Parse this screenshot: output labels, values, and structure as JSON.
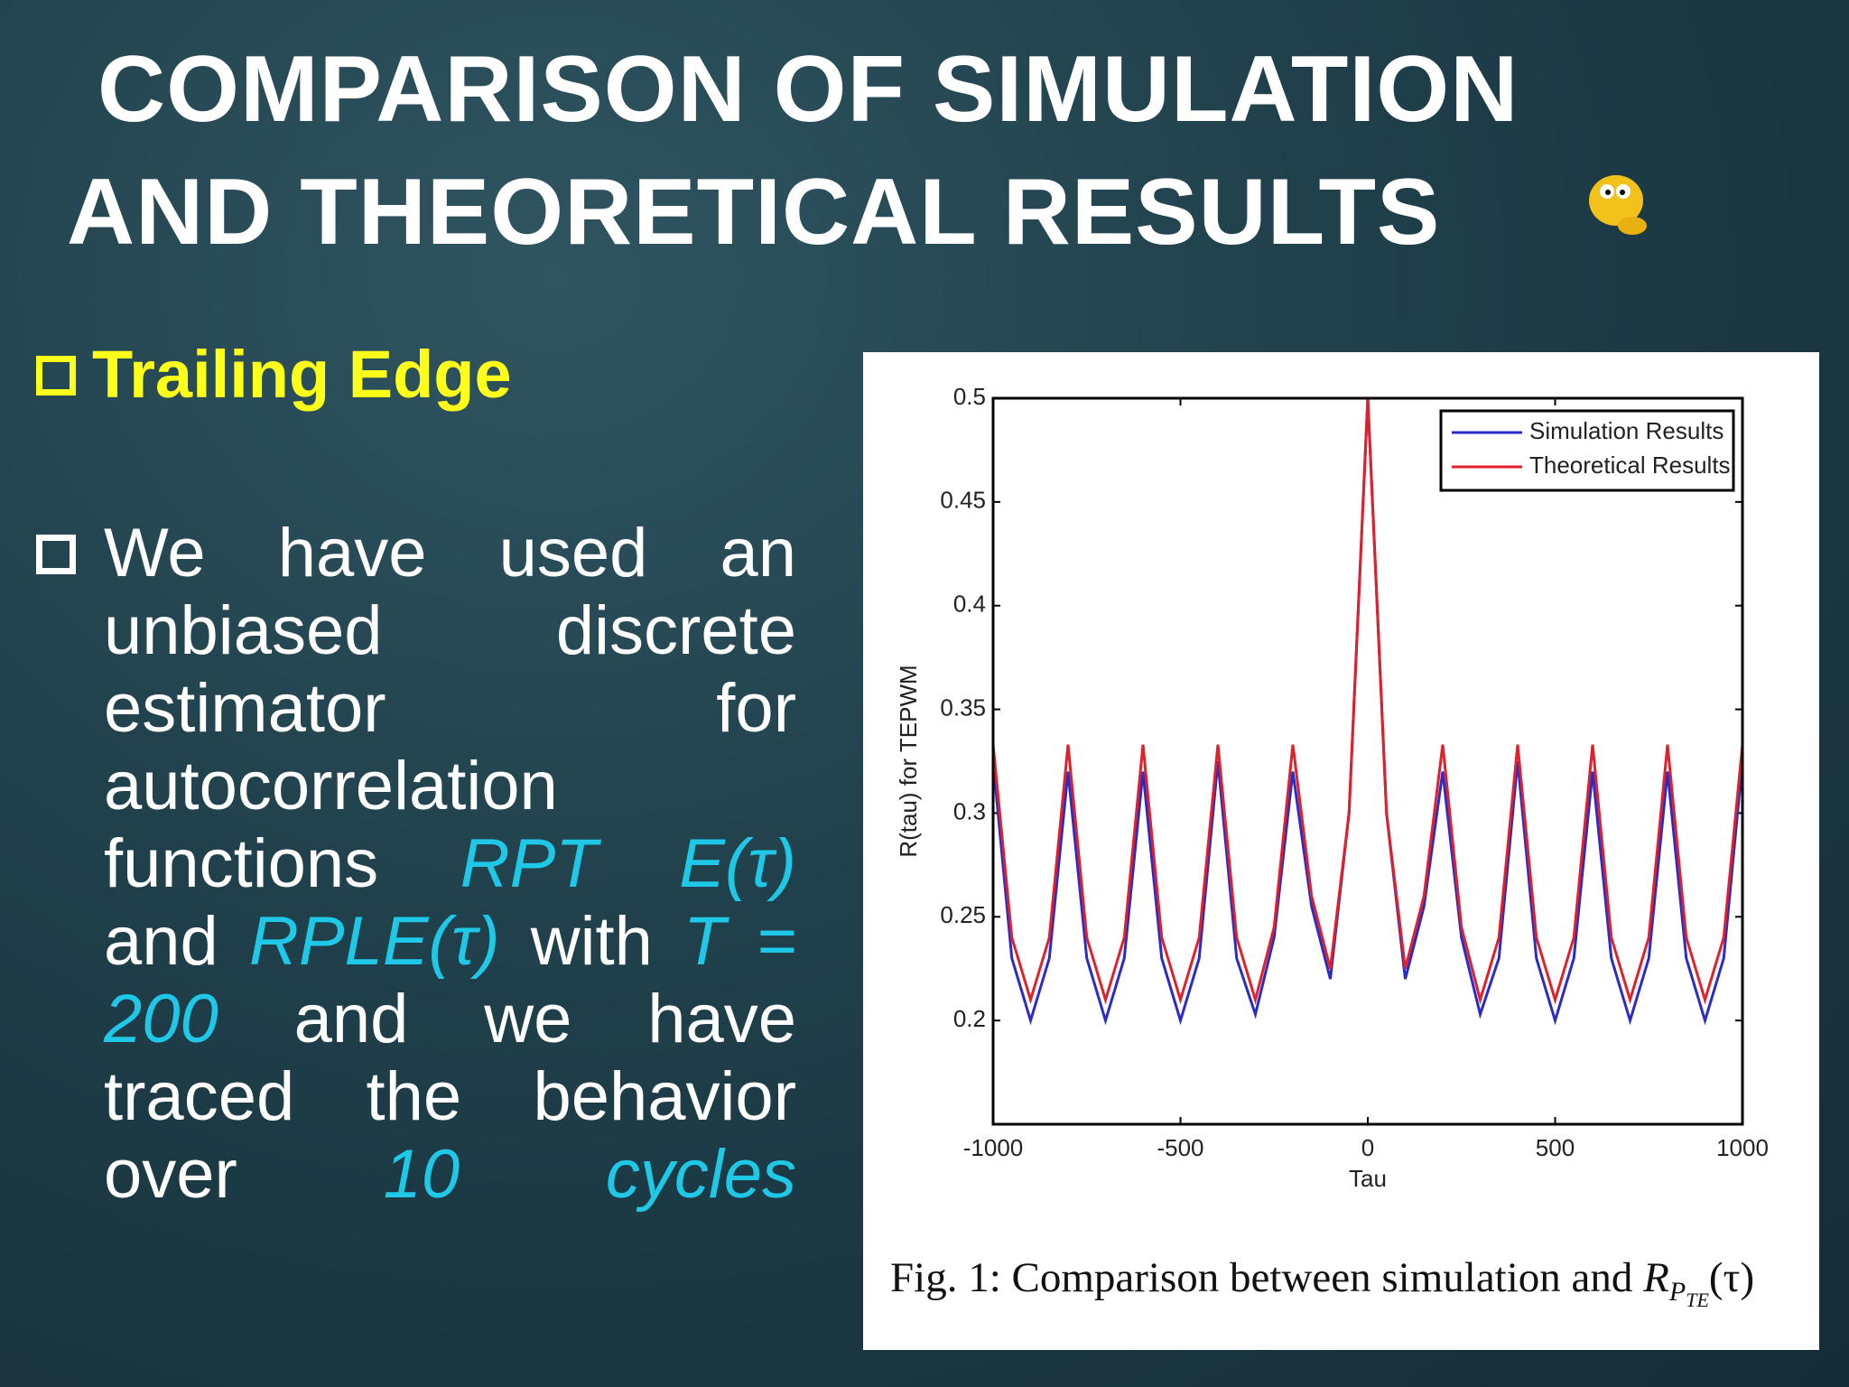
{
  "slide": {
    "title_lines": [
      "COMPARISON OF SIMULATION",
      "AND THEORETICAL RESULTS"
    ],
    "bullets": [
      {
        "segments": [
          {
            "text": "Trailing Edge",
            "highlight": false
          }
        ]
      },
      {
        "segments": [
          {
            "text": "We have used an unbiased discrete estimator for autocorrelation functions ",
            "highlight": false
          },
          {
            "text": "RPT E(τ)",
            "highlight": true
          },
          {
            "text": " and ",
            "highlight": false
          },
          {
            "text": "RPLE(τ)",
            "highlight": true
          },
          {
            "text": " with ",
            "highlight": false
          },
          {
            "text": "T = 200",
            "highlight": true
          },
          {
            "text": " and we have traced the behavior over ",
            "highlight": false
          },
          {
            "text": "10 cycles",
            "highlight": true
          }
        ]
      }
    ],
    "caption": {
      "text": "Fig. 1: Comparison between simulation and",
      "symbol": "R",
      "sub": "P",
      "subsub": "TE",
      "arg": "(τ)"
    }
  },
  "chart_data": {
    "type": "line",
    "x_label": "Tau",
    "y_label": "R(tau) for TEPWM",
    "x": [
      -1000,
      -950,
      -900,
      -850,
      -800,
      -750,
      -700,
      -650,
      -600,
      -550,
      -500,
      -450,
      -400,
      -350,
      -300,
      -250,
      -200,
      -150,
      -100,
      -50,
      0,
      50,
      100,
      150,
      200,
      250,
      300,
      350,
      400,
      450,
      500,
      550,
      600,
      650,
      700,
      750,
      800,
      850,
      900,
      950,
      1000
    ],
    "series": [
      {
        "name": "Simulation Results",
        "color": "#2b2bc8",
        "values": [
          0.325,
          0.23,
          0.2,
          0.23,
          0.32,
          0.23,
          0.2,
          0.23,
          0.32,
          0.23,
          0.2,
          0.23,
          0.325,
          0.23,
          0.203,
          0.24,
          0.32,
          0.255,
          0.22,
          0.3,
          0.5,
          0.3,
          0.22,
          0.255,
          0.32,
          0.24,
          0.203,
          0.23,
          0.325,
          0.23,
          0.2,
          0.23,
          0.32,
          0.23,
          0.2,
          0.23,
          0.32,
          0.23,
          0.2,
          0.23,
          0.325
        ]
      },
      {
        "name": "Theoretical Results",
        "color": "#e0202a",
        "values": [
          0.333,
          0.24,
          0.21,
          0.24,
          0.333,
          0.24,
          0.21,
          0.24,
          0.333,
          0.24,
          0.21,
          0.24,
          0.333,
          0.24,
          0.21,
          0.245,
          0.333,
          0.26,
          0.225,
          0.3,
          0.5,
          0.3,
          0.225,
          0.26,
          0.333,
          0.245,
          0.21,
          0.24,
          0.333,
          0.24,
          0.21,
          0.24,
          0.333,
          0.24,
          0.21,
          0.24,
          0.333,
          0.24,
          0.21,
          0.24,
          0.333
        ]
      }
    ],
    "xlim": [
      -1000,
      1000
    ],
    "xticks": [
      -1000,
      -500,
      0,
      500,
      1000
    ],
    "ylim": [
      0.15,
      0.5
    ],
    "yticks": [
      0.2,
      0.25,
      0.3,
      0.35,
      0.4,
      0.45,
      0.5
    ],
    "legend": "top-right"
  }
}
